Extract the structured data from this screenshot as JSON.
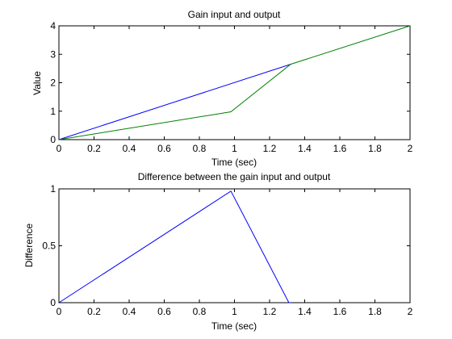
{
  "chart_data": [
    {
      "type": "line",
      "title": "Gain input and output",
      "xlabel": "Time (sec)",
      "ylabel": "Value",
      "xlim": [
        0,
        2
      ],
      "ylim": [
        0,
        4
      ],
      "xticks": [
        "0",
        "0.2",
        "0.4",
        "0.6",
        "0.8",
        "1",
        "1.2",
        "1.4",
        "1.6",
        "1.8",
        "2"
      ],
      "yticks": [
        "0",
        "1",
        "2",
        "3",
        "4"
      ],
      "grid": false,
      "series": [
        {
          "color": "#0000ff",
          "x": [
            0,
            1.32
          ],
          "y": [
            0,
            2.65
          ]
        },
        {
          "color": "#008000",
          "x": [
            0,
            0.98,
            1.32,
            2.0
          ],
          "y": [
            0,
            0.98,
            2.65,
            4.0
          ]
        }
      ]
    },
    {
      "type": "line",
      "title": "Difference between the gain input and output",
      "xlabel": "Time (sec)",
      "ylabel": "Difference",
      "xlim": [
        0,
        2
      ],
      "ylim": [
        0,
        1
      ],
      "xticks": [
        "0",
        "0.2",
        "0.4",
        "0.6",
        "0.8",
        "1",
        "1.2",
        "1.4",
        "1.6",
        "1.8",
        "2"
      ],
      "yticks": [
        "0",
        "0.5",
        "1"
      ],
      "grid": false,
      "series": [
        {
          "color": "#0000ff",
          "x": [
            0,
            0.98,
            1.31,
            1.32
          ],
          "y": [
            0,
            0.98,
            0,
            0
          ]
        }
      ]
    }
  ]
}
